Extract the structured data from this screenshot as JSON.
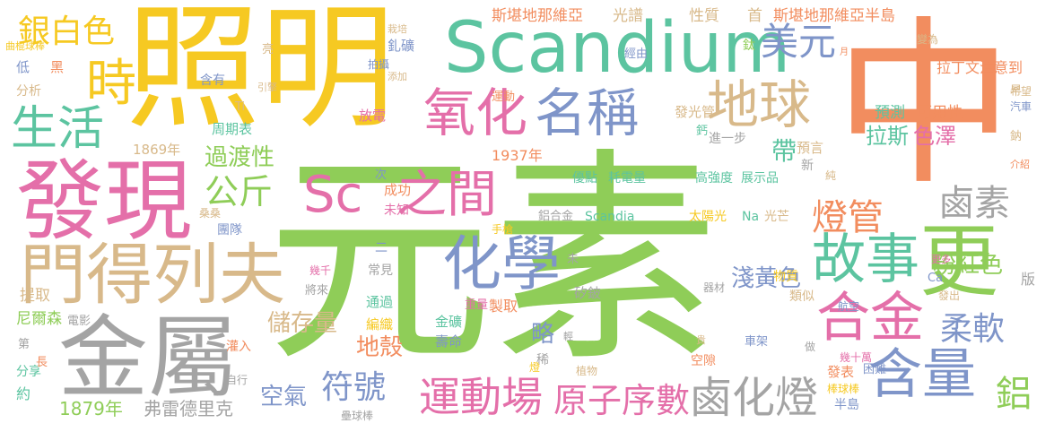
{
  "palette": {
    "yellow": "#f6c922",
    "green": "#8fcd58",
    "teal": "#5cc4a0",
    "orange": "#f28d5f",
    "pink": "#e46fa9",
    "blue": "#7f95c9",
    "tan": "#d8b98a",
    "gray": "#a4a4a4"
  },
  "words": [
    {
      "text": "元素",
      "color": "green"
    },
    {
      "text": "中",
      "color": "orange"
    },
    {
      "text": "照明",
      "color": "yellow"
    },
    {
      "text": "Scandium",
      "color": "teal"
    },
    {
      "text": "發現",
      "color": "pink"
    },
    {
      "text": "金屬",
      "color": "gray"
    },
    {
      "text": "門得列夫",
      "color": "tan"
    },
    {
      "text": "更",
      "color": "green"
    },
    {
      "text": "化學",
      "color": "blue"
    },
    {
      "text": "故事",
      "color": "teal"
    },
    {
      "text": "合金",
      "color": "pink"
    },
    {
      "text": "含量",
      "color": "blue"
    },
    {
      "text": "地球",
      "color": "tan"
    },
    {
      "text": "氧化",
      "color": "pink"
    },
    {
      "text": "名稱",
      "color": "blue"
    },
    {
      "text": "Sc",
      "color": "pink"
    },
    {
      "text": "之間",
      "color": "pink"
    },
    {
      "text": "時",
      "color": "yellow"
    },
    {
      "text": "生活",
      "color": "teal"
    },
    {
      "text": "鹵化燈",
      "color": "gray"
    },
    {
      "text": "運動場",
      "color": "pink"
    },
    {
      "text": "美元",
      "color": "blue"
    },
    {
      "text": "鹵素",
      "color": "gray"
    },
    {
      "text": "燈管",
      "color": "orange"
    },
    {
      "text": "原子序數",
      "color": "pink"
    },
    {
      "text": "銀白色",
      "color": "yellow"
    },
    {
      "text": "公斤",
      "color": "green"
    },
    {
      "text": "柔軟",
      "color": "blue"
    },
    {
      "text": "鋁",
      "color": "green"
    },
    {
      "text": "符號",
      "color": "blue"
    },
    {
      "text": "粉紅色",
      "color": "green"
    },
    {
      "text": "淺黃色",
      "color": "blue"
    },
    {
      "text": "過渡性",
      "color": "green"
    },
    {
      "text": "略",
      "color": "blue"
    },
    {
      "text": "空氣",
      "color": "blue"
    },
    {
      "text": "地殼",
      "color": "orange"
    },
    {
      "text": "儲存量",
      "color": "tan"
    },
    {
      "text": "帶",
      "color": "teal"
    },
    {
      "text": "拉斯",
      "color": "teal"
    },
    {
      "text": "色澤",
      "color": "pink"
    },
    {
      "text": "1879年",
      "color": "green"
    },
    {
      "text": "弗雷德里克",
      "color": "gray"
    },
    {
      "text": "斯堪地那維亞",
      "color": "orange"
    },
    {
      "text": "斯堪地那維亞半島",
      "color": "orange"
    },
    {
      "text": "光譜",
      "color": "tan"
    },
    {
      "text": "性質",
      "color": "tan"
    },
    {
      "text": "首",
      "color": "tan"
    },
    {
      "text": "拉丁文注意到",
      "color": "orange"
    },
    {
      "text": "發光管",
      "color": "tan"
    },
    {
      "text": "可用性",
      "color": "orange"
    },
    {
      "text": "預測",
      "color": "teal"
    },
    {
      "text": "進一步",
      "color": "gray"
    },
    {
      "text": "預言",
      "color": "tan"
    },
    {
      "text": "1937年",
      "color": "orange"
    },
    {
      "text": "1869年",
      "color": "tan"
    },
    {
      "text": "周期表",
      "color": "teal"
    },
    {
      "text": "放電",
      "color": "pink"
    },
    {
      "text": "運動",
      "color": "orange"
    },
    {
      "text": "優點",
      "color": "teal"
    },
    {
      "text": "耗電量",
      "color": "teal"
    },
    {
      "text": "高強度",
      "color": "teal"
    },
    {
      "text": "展示品",
      "color": "teal"
    },
    {
      "text": "太陽光",
      "color": "yellow"
    },
    {
      "text": "Na",
      "color": "teal"
    },
    {
      "text": "光芒",
      "color": "tan"
    },
    {
      "text": "Scandia",
      "color": "teal"
    },
    {
      "text": "鋁合金",
      "color": "gray"
    },
    {
      "text": "成功",
      "color": "orange"
    },
    {
      "text": "未知",
      "color": "pink"
    },
    {
      "text": "手槍",
      "color": "yellow"
    },
    {
      "text": "團隊",
      "color": "blue"
    },
    {
      "text": "桑桑",
      "color": "tan"
    },
    {
      "text": "尼爾森",
      "color": "green"
    },
    {
      "text": "電影",
      "color": "gray"
    },
    {
      "text": "提取",
      "color": "tan"
    },
    {
      "text": "幾千",
      "color": "pink"
    },
    {
      "text": "將來",
      "color": "gray"
    },
    {
      "text": "通過",
      "color": "teal"
    },
    {
      "text": "編織",
      "color": "yellow"
    },
    {
      "text": "金礦",
      "color": "teal"
    },
    {
      "text": "壽命",
      "color": "blue"
    },
    {
      "text": "重量",
      "color": "pink"
    },
    {
      "text": "製取",
      "color": "orange"
    },
    {
      "text": "矽鈹",
      "color": "gray"
    },
    {
      "text": "常見",
      "color": "gray"
    },
    {
      "text": "物質",
      "color": "yellow"
    },
    {
      "text": "類似",
      "color": "tan"
    },
    {
      "text": "發出",
      "color": "tan"
    },
    {
      "text": "更多",
      "color": "pink"
    },
    {
      "text": "Ca",
      "color": "blue"
    },
    {
      "text": "航空",
      "color": "blue"
    },
    {
      "text": "車架",
      "color": "blue"
    },
    {
      "text": "幾十萬",
      "color": "pink"
    },
    {
      "text": "困難",
      "color": "blue"
    },
    {
      "text": "發表",
      "color": "orange"
    },
    {
      "text": "棒球棒",
      "color": "yellow"
    },
    {
      "text": "半島",
      "color": "blue"
    },
    {
      "text": "空隙",
      "color": "orange"
    },
    {
      "text": "植物",
      "color": "tan"
    },
    {
      "text": "稀",
      "color": "gray"
    },
    {
      "text": "自行",
      "color": "gray"
    },
    {
      "text": "壘球棒",
      "color": "gray"
    },
    {
      "text": "灌入",
      "color": "orange"
    },
    {
      "text": "分享",
      "color": "teal"
    },
    {
      "text": "約",
      "color": "teal"
    },
    {
      "text": "第",
      "color": "gray"
    },
    {
      "text": "長",
      "color": "orange"
    },
    {
      "text": "含有",
      "color": "blue"
    },
    {
      "text": "拍攝",
      "color": "blue"
    },
    {
      "text": "引擎",
      "color": "tan"
    },
    {
      "text": "Ti",
      "color": "tan"
    },
    {
      "text": "亮",
      "color": "tan"
    },
    {
      "text": "栽培",
      "color": "tan"
    },
    {
      "text": "添加",
      "color": "tan"
    },
    {
      "text": "釓礦",
      "color": "blue"
    },
    {
      "text": "經由",
      "color": "blue"
    },
    {
      "text": "曲棍球棒",
      "color": "yellow"
    },
    {
      "text": "黑",
      "color": "orange"
    },
    {
      "text": "低",
      "color": "blue"
    },
    {
      "text": "分析",
      "color": "tan"
    },
    {
      "text": "鈦",
      "color": "green"
    },
    {
      "text": "變為",
      "color": "tan"
    },
    {
      "text": "早",
      "color": "tan"
    },
    {
      "text": "希望",
      "color": "tan"
    },
    {
      "text": "汽車",
      "color": "blue"
    },
    {
      "text": "鈣",
      "color": "teal"
    },
    {
      "text": "鈉",
      "color": "tan"
    },
    {
      "text": "介紹",
      "color": "orange"
    },
    {
      "text": "新",
      "color": "gray"
    },
    {
      "text": "純",
      "color": "tan"
    },
    {
      "text": "次",
      "color": "blue"
    },
    {
      "text": "二",
      "color": "blue"
    },
    {
      "text": "未",
      "color": "gray"
    },
    {
      "text": "器材",
      "color": "gray"
    },
    {
      "text": "輕",
      "color": "gray"
    },
    {
      "text": "貴",
      "color": "tan"
    },
    {
      "text": "燈",
      "color": "yellow"
    },
    {
      "text": "做",
      "color": "gray"
    },
    {
      "text": "版",
      "color": "gray"
    },
    {
      "text": "月",
      "color": "orange"
    }
  ]
}
